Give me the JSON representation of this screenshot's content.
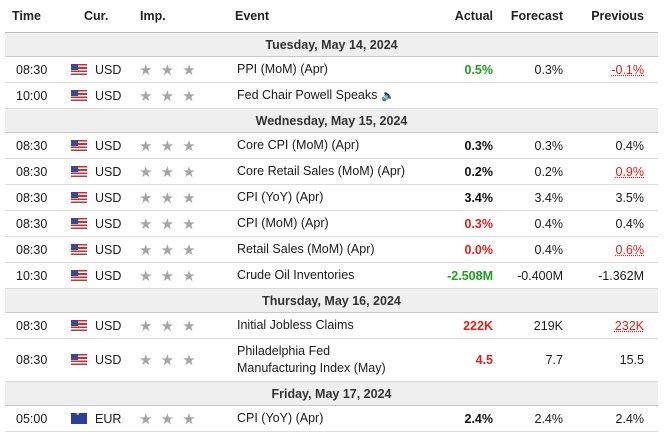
{
  "headers": {
    "time": "Time",
    "currency": "Cur.",
    "importance": "Imp.",
    "event": "Event",
    "actual": "Actual",
    "forecast": "Forecast",
    "previous": "Previous"
  },
  "stars_glyph": "★ ★ ★",
  "days": [
    {
      "label": "Tuesday, May 14, 2024",
      "rows": [
        {
          "time": "08:30",
          "flag": "us",
          "currency": "USD",
          "event": "PPI (MoM) (Apr)",
          "actual": "0.5%",
          "actual_style": "green",
          "forecast": "0.3%",
          "previous": "-0.1%",
          "previous_style": "red-dot"
        },
        {
          "time": "10:00",
          "flag": "us",
          "currency": "USD",
          "event": "Fed Chair Powell Speaks",
          "speech": true,
          "speech_icon": "speaker-icon",
          "actual": "",
          "actual_style": "bold",
          "forecast": "",
          "previous": "",
          "previous_style": ""
        }
      ]
    },
    {
      "label": "Wednesday, May 15, 2024",
      "rows": [
        {
          "time": "08:30",
          "flag": "us",
          "currency": "USD",
          "event": "Core CPI (MoM) (Apr)",
          "actual": "0.3%",
          "actual_style": "bold",
          "forecast": "0.3%",
          "previous": "0.4%",
          "previous_style": ""
        },
        {
          "time": "08:30",
          "flag": "us",
          "currency": "USD",
          "event": "Core Retail Sales (MoM) (Apr)",
          "actual": "0.2%",
          "actual_style": "bold",
          "forecast": "0.2%",
          "previous": "0.9%",
          "previous_style": "red-dot"
        },
        {
          "time": "08:30",
          "flag": "us",
          "currency": "USD",
          "event": "CPI (YoY) (Apr)",
          "actual": "3.4%",
          "actual_style": "bold",
          "forecast": "3.4%",
          "previous": "3.5%",
          "previous_style": ""
        },
        {
          "time": "08:30",
          "flag": "us",
          "currency": "USD",
          "event": "CPI (MoM) (Apr)",
          "actual": "0.3%",
          "actual_style": "red",
          "forecast": "0.4%",
          "previous": "0.4%",
          "previous_style": ""
        },
        {
          "time": "08:30",
          "flag": "us",
          "currency": "USD",
          "event": "Retail Sales (MoM) (Apr)",
          "actual": "0.0%",
          "actual_style": "red",
          "forecast": "0.4%",
          "previous": "0.6%",
          "previous_style": "red-dot"
        },
        {
          "time": "10:30",
          "flag": "us",
          "currency": "USD",
          "event": "Crude Oil Inventories",
          "actual": "-2.508M",
          "actual_style": "green",
          "forecast": "-0.400M",
          "previous": "-1.362M",
          "previous_style": ""
        }
      ]
    },
    {
      "label": "Thursday, May 16, 2024",
      "rows": [
        {
          "time": "08:30",
          "flag": "us",
          "currency": "USD",
          "event": "Initial Jobless Claims",
          "actual": "222K",
          "actual_style": "red",
          "forecast": "219K",
          "previous": "232K",
          "previous_style": "red-dot"
        },
        {
          "time": "08:30",
          "flag": "us",
          "currency": "USD",
          "event": "Philadelphia Fed Manufacturing Index (May)",
          "tall": true,
          "actual": "4.5",
          "actual_style": "red",
          "forecast": "7.7",
          "previous": "15.5",
          "previous_style": ""
        }
      ]
    },
    {
      "label": "Friday, May 17, 2024",
      "rows": [
        {
          "time": "05:00",
          "flag": "eu",
          "currency": "EUR",
          "event": "CPI (YoY) (Apr)",
          "actual": "2.4%",
          "actual_style": "bold",
          "forecast": "2.4%",
          "previous": "2.4%",
          "previous_style": ""
        }
      ]
    }
  ]
}
